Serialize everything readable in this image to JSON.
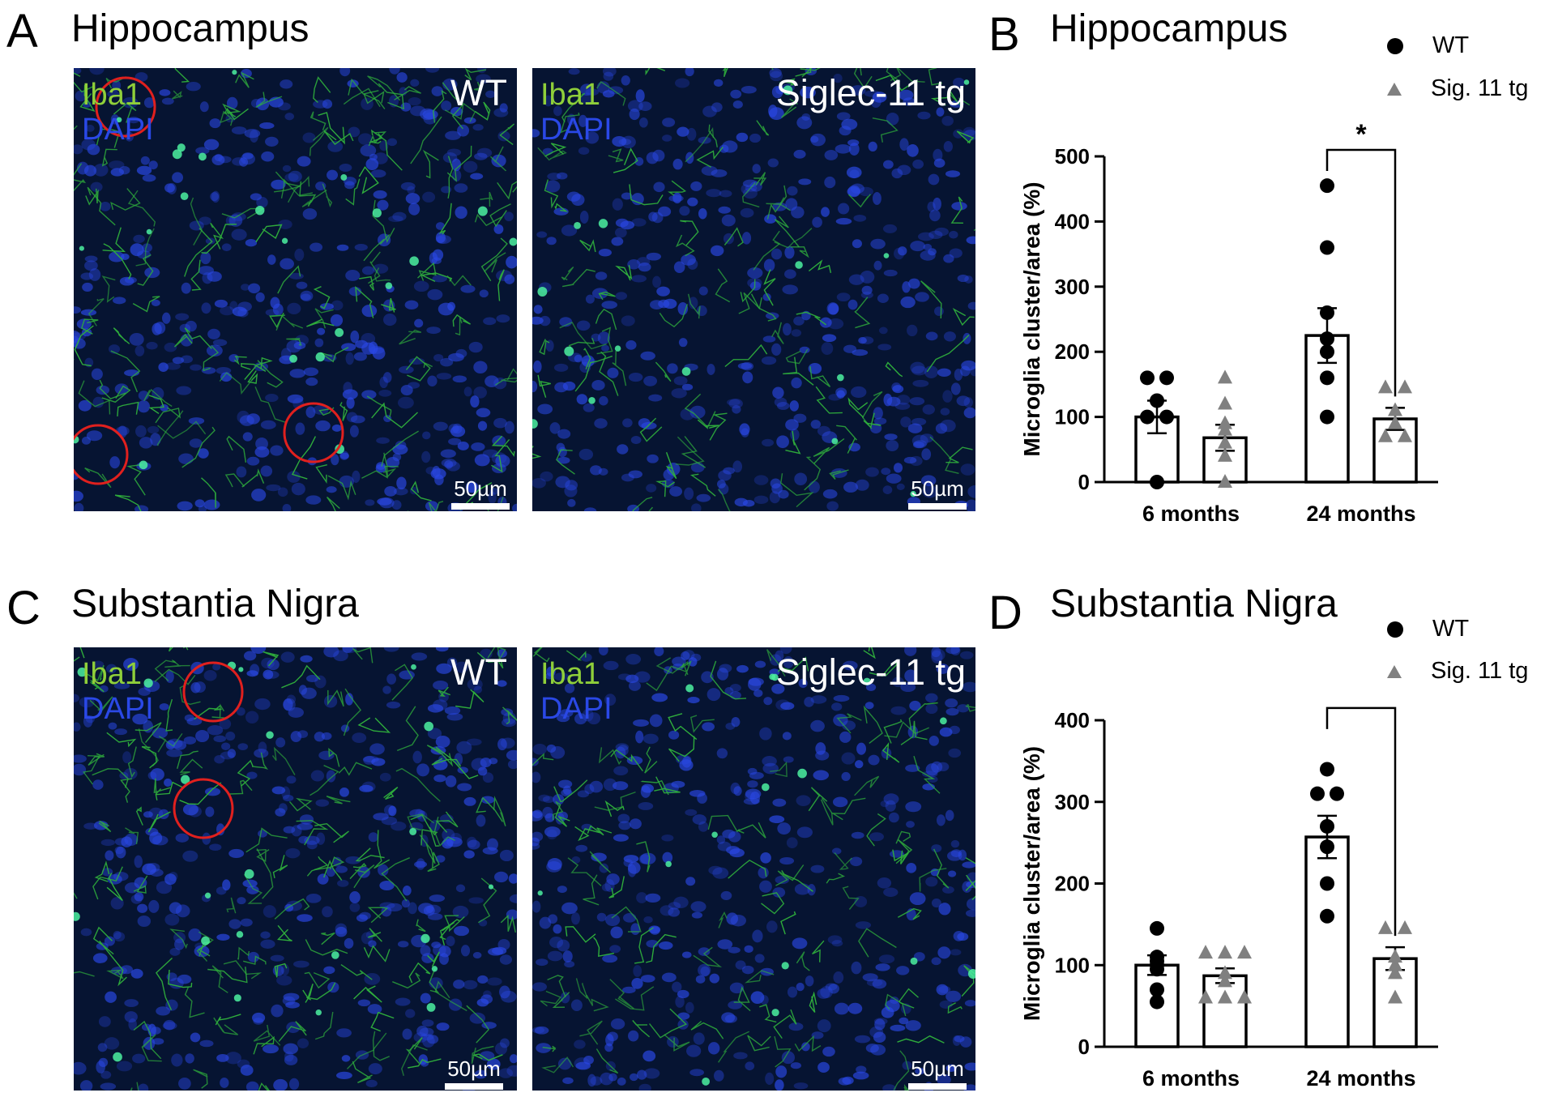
{
  "panels": {
    "A": {
      "letter": "A",
      "title": "Hippocampus"
    },
    "B": {
      "letter": "B",
      "title": "Hippocampus"
    },
    "C": {
      "letter": "C",
      "title": "Substantia Nigra"
    },
    "D": {
      "letter": "D",
      "title": "Substantia Nigra"
    }
  },
  "micrographs": {
    "stain_iba1": "Iba1",
    "stain_dapi": "DAPI",
    "wt_label": "WT",
    "tg_label": "Siglec-11 tg",
    "scale_label": "50µm",
    "colors": {
      "iba1": "#8fcf3a",
      "dapi": "#2a48e6",
      "circle": "#e0201e"
    }
  },
  "legend": {
    "wt": "WT",
    "tg": "Sig. 11 tg"
  },
  "chart_data": [
    {
      "type": "bar",
      "title": "Hippocampus",
      "ylabel": "Microglia cluster/area (%)",
      "categories": [
        "6 months",
        "24 months"
      ],
      "ylim": [
        0,
        500
      ],
      "yticks": [
        0,
        100,
        200,
        300,
        400,
        500
      ],
      "series": [
        {
          "name": "WT",
          "means": [
            100,
            225
          ],
          "sem": [
            25,
            42
          ],
          "points": [
            [
              160,
              160,
              125,
              100,
              100,
              0
            ],
            [
              455,
              360,
              260,
              220,
              200,
              160,
              100
            ]
          ]
        },
        {
          "name": "Sig. 11 tg",
          "means": [
            68,
            97
          ],
          "sem": [
            20,
            17
          ],
          "points": [
            [
              160,
              120,
              90,
              80,
              60,
              40,
              0
            ],
            [
              145,
              145,
              110,
              90,
              70,
              70
            ]
          ]
        }
      ],
      "significance": {
        "between": "24 months",
        "label": "*",
        "y": 510
      }
    },
    {
      "type": "bar",
      "title": "Substantia Nigra",
      "ylabel": "Microglia cluster/area (%)",
      "categories": [
        "6 months",
        "24 months"
      ],
      "ylim": [
        0,
        400
      ],
      "yticks": [
        0,
        100,
        200,
        300,
        400
      ],
      "series": [
        {
          "name": "WT",
          "means": [
            100,
            257
          ],
          "sem": [
            12,
            26
          ],
          "points": [
            [
              145,
              110,
              105,
              100,
              95,
              70,
              55
            ],
            [
              340,
              310,
              310,
              270,
              245,
              200,
              160
            ]
          ]
        },
        {
          "name": "Sig. 11 tg",
          "means": [
            87,
            108
          ],
          "sem": [
            9,
            14
          ],
          "points": [
            [
              115,
              115,
              115,
              90,
              80,
              60,
              60,
              60
            ],
            [
              145,
              145,
              110,
              100,
              90,
              60
            ]
          ]
        }
      ],
      "significance": {
        "between": "24 months",
        "label": "***",
        "y": 415
      }
    }
  ]
}
